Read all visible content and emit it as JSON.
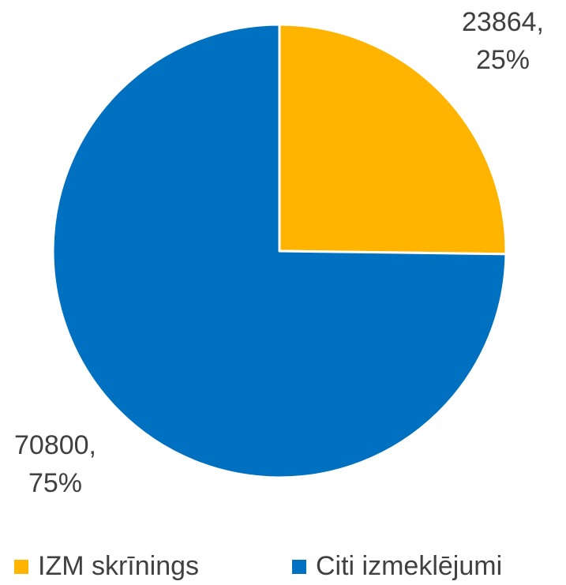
{
  "chart_data": {
    "type": "pie",
    "categories": [
      "IZM skrīnings",
      "Citi izmeklējumi"
    ],
    "values": [
      23864,
      70800
    ],
    "value_labels": [
      "23864,",
      "70800,"
    ],
    "percentages": [
      25,
      75
    ],
    "percentage_labels": [
      "25%",
      "75%"
    ],
    "colors": [
      "#FFB400",
      "#0070C0"
    ],
    "legend": "bottom"
  }
}
